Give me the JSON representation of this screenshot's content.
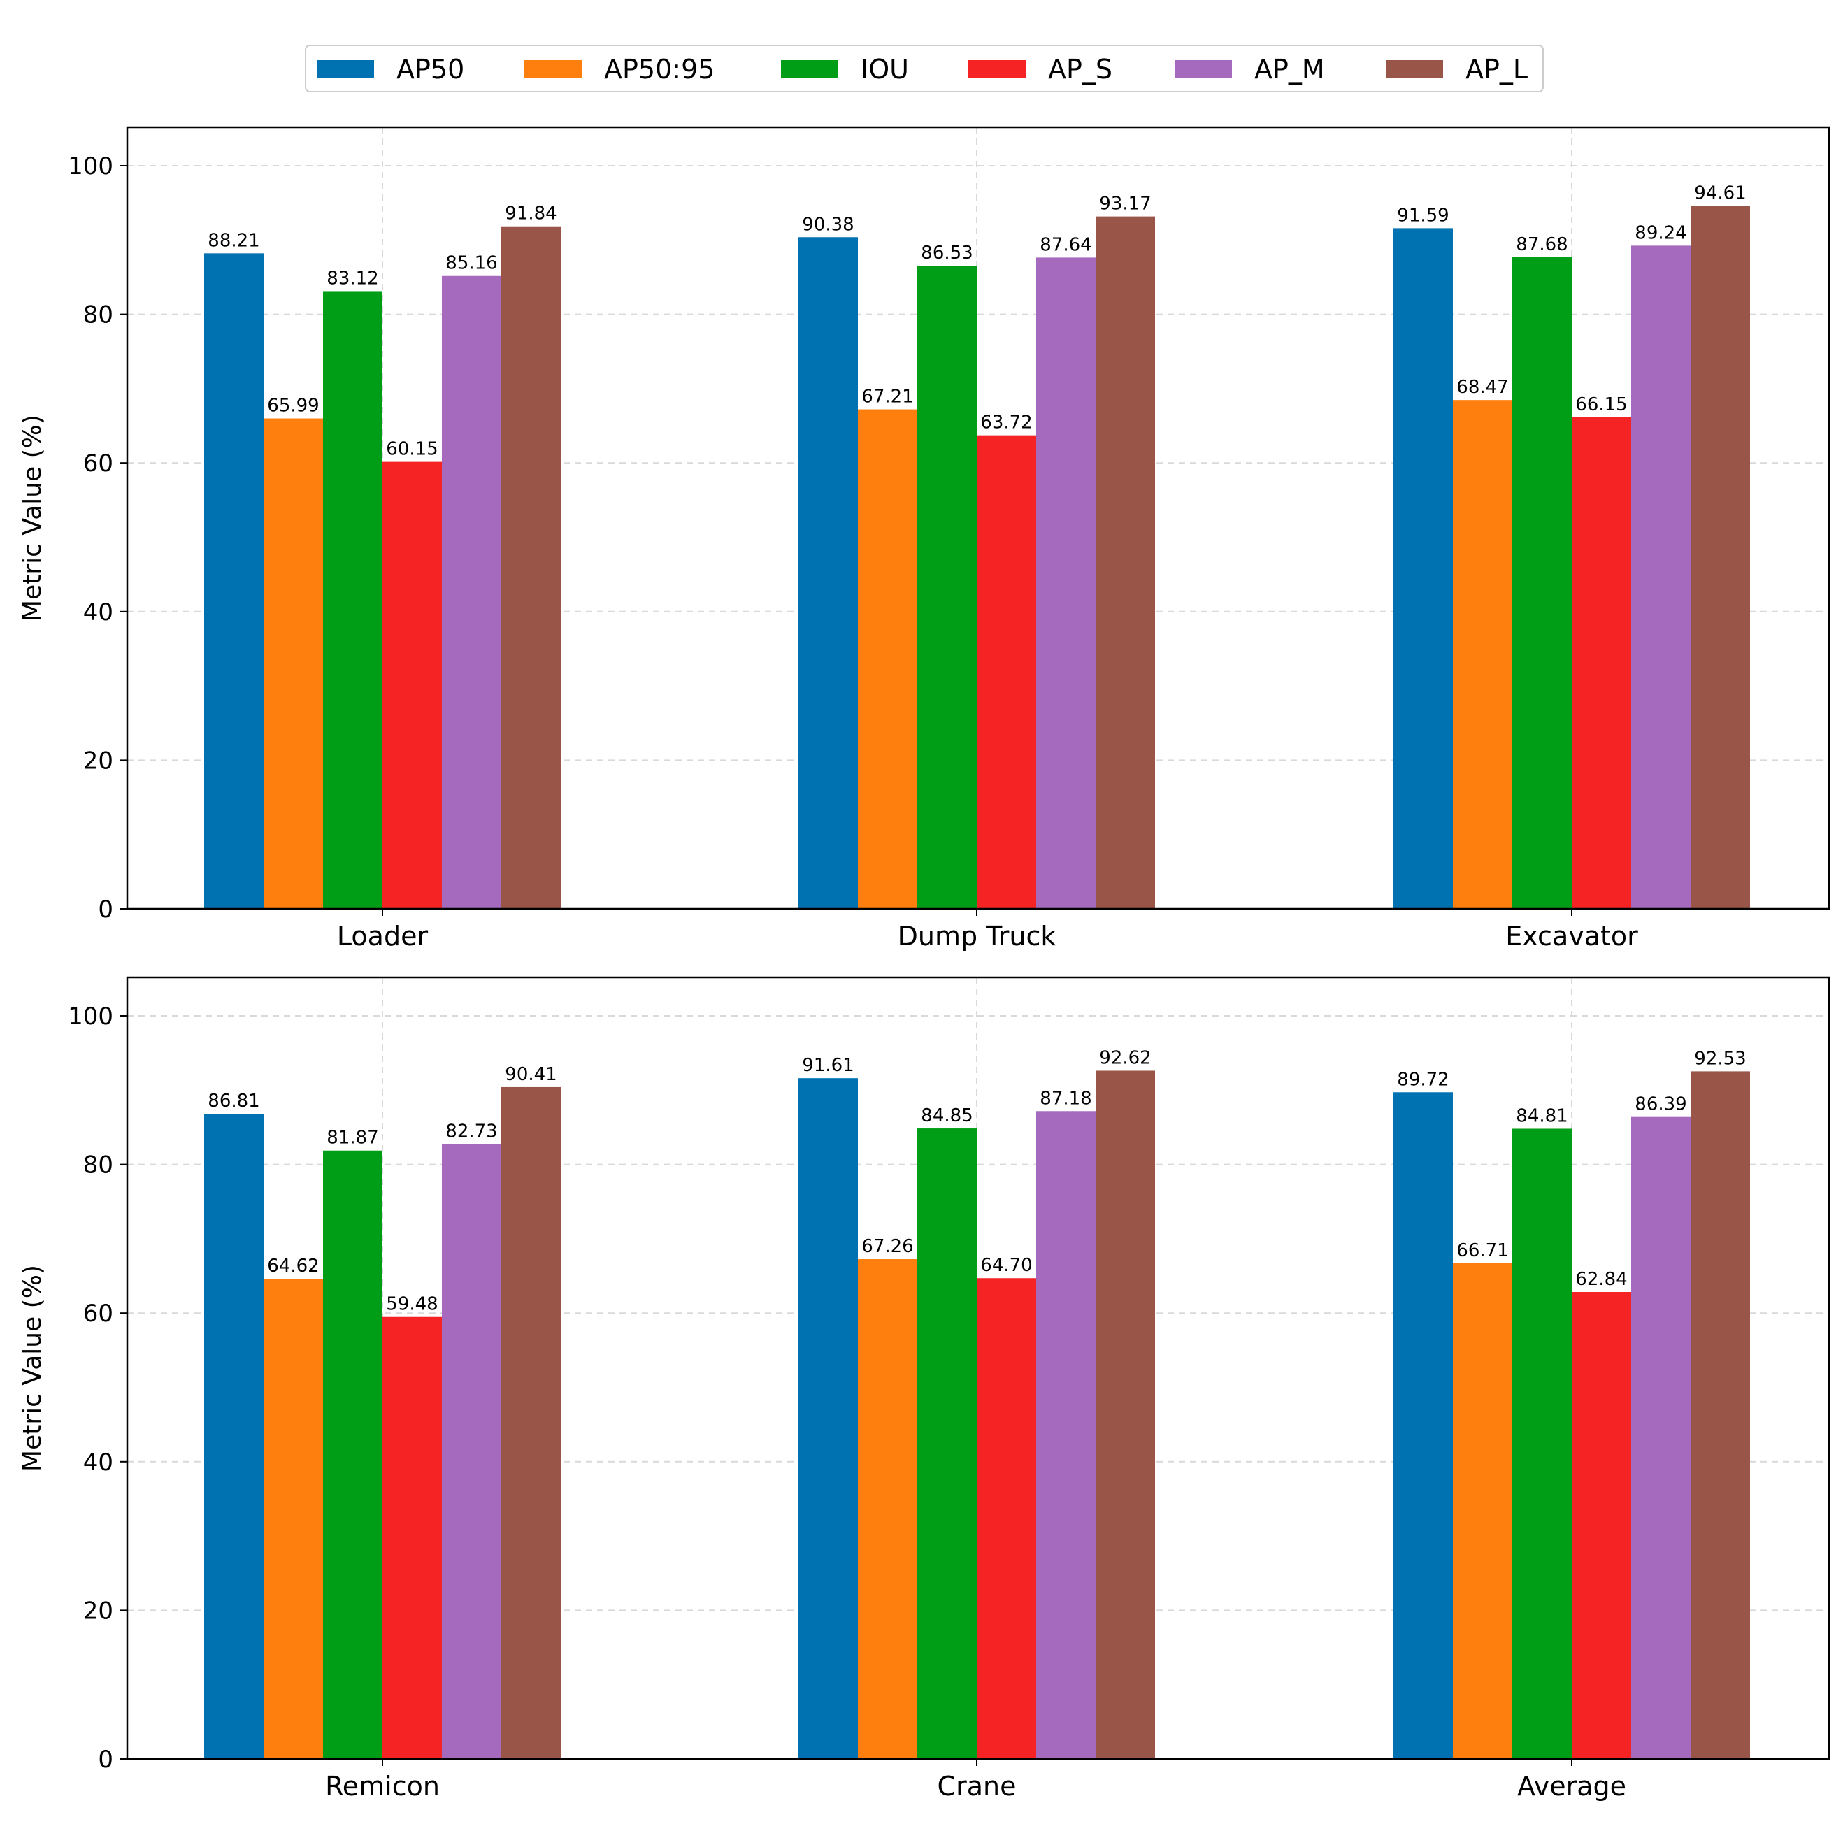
{
  "legend": {
    "position": "top-center",
    "entries": [
      {
        "label": "AP50",
        "color": "#0072b2"
      },
      {
        "label": "AP50:95",
        "color": "#ff7f0e"
      },
      {
        "label": "IOU",
        "color": "#009e17"
      },
      {
        "label": "AP_S",
        "color": "#f52323"
      },
      {
        "label": "AP_M",
        "color": "#a569bd"
      },
      {
        "label": "AP_L",
        "color": "#9a5549"
      }
    ]
  },
  "chart_data": [
    {
      "type": "bar",
      "title": "",
      "xlabel": "",
      "ylabel": "Metric Value (%)",
      "ylim": [
        0,
        105
      ],
      "yticks": [
        "0",
        "20",
        "40",
        "60",
        "80",
        "100"
      ],
      "grid": true,
      "categories": [
        "Loader",
        "Dump Truck",
        "Excavator"
      ],
      "series": [
        {
          "name": "AP50",
          "values": [
            88.21,
            90.38,
            91.59
          ],
          "labels": [
            "88.21",
            "90.38",
            "91.59"
          ]
        },
        {
          "name": "AP50:95",
          "values": [
            65.99,
            67.21,
            68.47
          ],
          "labels": [
            "65.99",
            "67.21",
            "68.47"
          ]
        },
        {
          "name": "IOU",
          "values": [
            83.12,
            86.53,
            87.68
          ],
          "labels": [
            "83.12",
            "86.53",
            "87.68"
          ]
        },
        {
          "name": "AP_S",
          "values": [
            60.15,
            63.72,
            66.15
          ],
          "labels": [
            "60.15",
            "63.72",
            "66.15"
          ]
        },
        {
          "name": "AP_M",
          "values": [
            85.16,
            87.64,
            89.24
          ],
          "labels": [
            "85.16",
            "87.64",
            "89.24"
          ]
        },
        {
          "name": "AP_L",
          "values": [
            91.84,
            93.17,
            94.61
          ],
          "labels": [
            "91.84",
            "93.17",
            "94.61"
          ]
        }
      ]
    },
    {
      "type": "bar",
      "title": "",
      "xlabel": "",
      "ylabel": "Metric Value (%)",
      "ylim": [
        0,
        105
      ],
      "yticks": [
        "0",
        "20",
        "40",
        "60",
        "80",
        "100"
      ],
      "grid": true,
      "categories": [
        "Remicon",
        "Crane",
        "Average"
      ],
      "series": [
        {
          "name": "AP50",
          "values": [
            86.81,
            91.61,
            89.72
          ],
          "labels": [
            "86.81",
            "91.61",
            "89.72"
          ]
        },
        {
          "name": "AP50:95",
          "values": [
            64.62,
            67.26,
            66.71
          ],
          "labels": [
            "64.62",
            "67.26",
            "66.71"
          ]
        },
        {
          "name": "IOU",
          "values": [
            81.87,
            84.85,
            84.81
          ],
          "labels": [
            "81.87",
            "84.85",
            "84.81"
          ]
        },
        {
          "name": "AP_S",
          "values": [
            59.48,
            64.7,
            62.84
          ],
          "labels": [
            "59.48",
            "64.70",
            "62.84"
          ]
        },
        {
          "name": "AP_M",
          "values": [
            82.73,
            87.18,
            86.39
          ],
          "labels": [
            "82.73",
            "87.18",
            "86.39"
          ]
        },
        {
          "name": "AP_L",
          "values": [
            90.41,
            92.62,
            92.53
          ],
          "labels": [
            "90.41",
            "92.62",
            "92.53"
          ]
        }
      ]
    }
  ]
}
